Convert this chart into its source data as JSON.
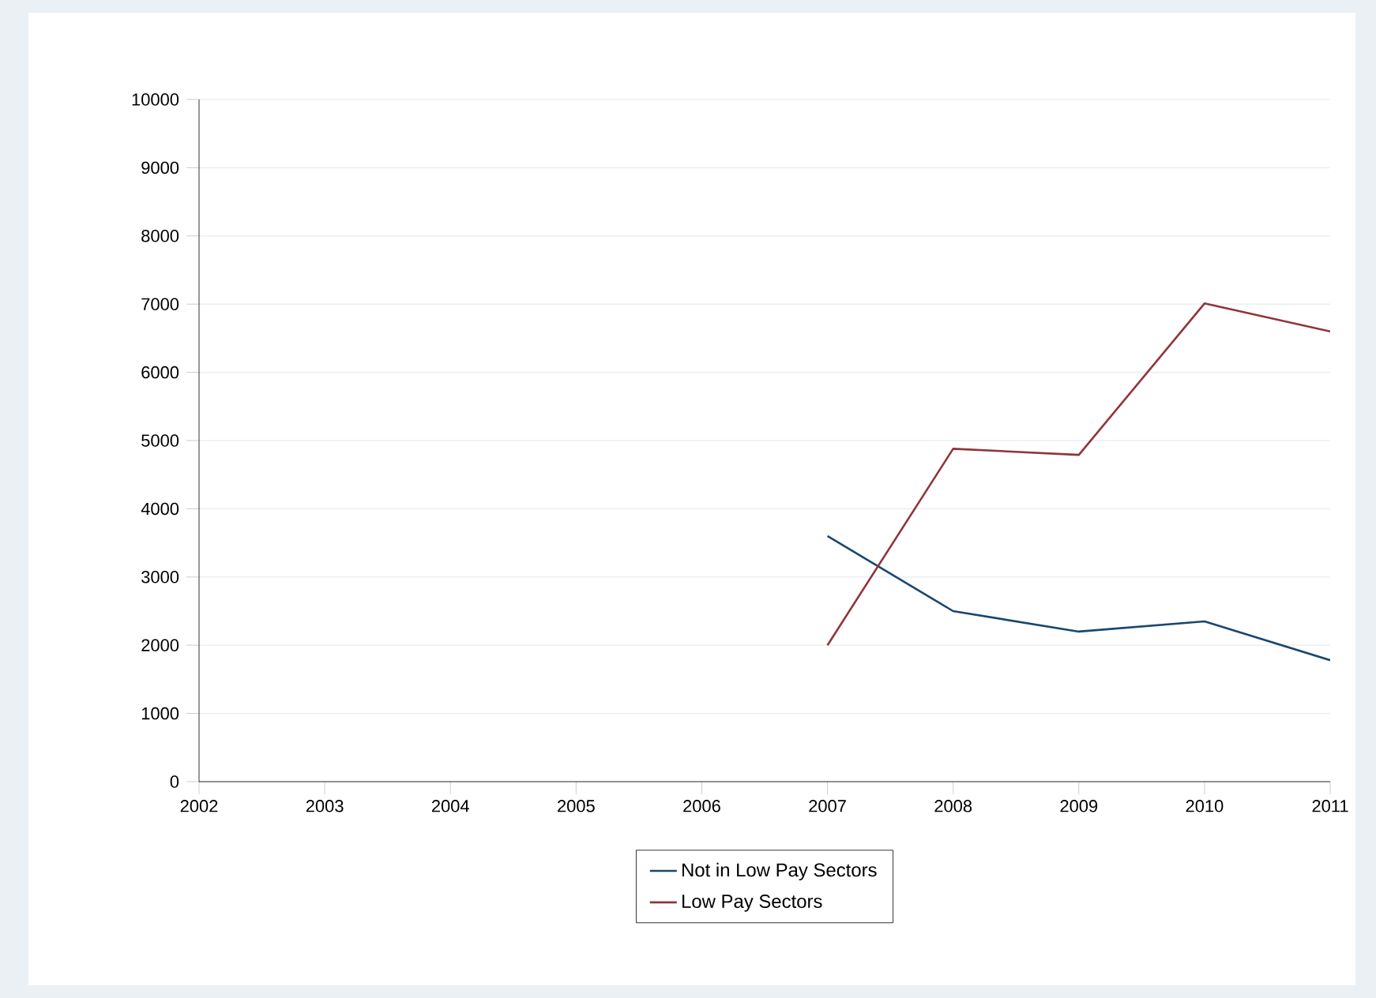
{
  "chart_data": {
    "type": "line",
    "x": [
      2007,
      2008,
      2009,
      2010,
      2011
    ],
    "series": [
      {
        "name": "Not in Low Pay Sectors",
        "color": "#1a476f",
        "values": [
          3600,
          2500,
          2200,
          2350,
          1780
        ]
      },
      {
        "name": "Low Pay Sectors",
        "color": "#90353b",
        "values": [
          2000,
          4880,
          4790,
          7010,
          6600
        ]
      }
    ],
    "xlim": [
      2002,
      2011
    ],
    "xticks": [
      2002,
      2003,
      2004,
      2005,
      2006,
      2007,
      2008,
      2009,
      2010,
      2011
    ],
    "ylim": [
      0,
      10000
    ],
    "yticks": [
      0,
      1000,
      2000,
      3000,
      4000,
      5000,
      6000,
      7000,
      8000,
      9000,
      10000
    ],
    "grid": "y",
    "legend": "bottom",
    "marker": "none",
    "line_style": "solid"
  }
}
